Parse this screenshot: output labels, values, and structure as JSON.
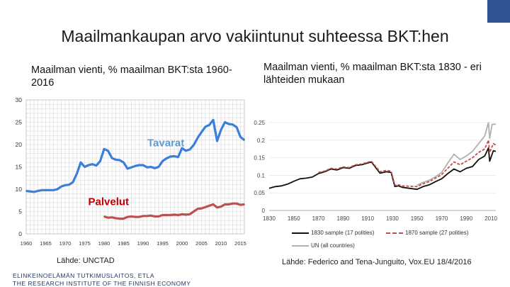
{
  "slide": {
    "title": "Maailmankaupan arvo vakiintunut suhteessa BKT:hen",
    "left_title": "Maailman vienti, % maailman BKT:sta 1960-2016",
    "right_title": "Maailman vienti, % maailman BKT:sta 1830 - eri lähteiden mukaan",
    "left_source": "Lähde: UNCTAD",
    "right_source": "Lähde: Federico and Tena-Junguito, Vox.EU 18/4/2016",
    "footer_line1": "ELINKEINOELÄMÄN TUTKIMUSLAITOS, ETLA",
    "footer_line2": "THE RESEARCH INSTITUTE OF THE FINNISH ECONOMY",
    "colors": {
      "brand": "#2f5597",
      "goods": "#3a7fd8",
      "services": "#c0504d"
    }
  },
  "chart_data": [
    {
      "type": "line",
      "x_ticks": [
        1960,
        1965,
        1970,
        1975,
        1980,
        1985,
        1990,
        1995,
        2000,
        2005,
        2010,
        2015
      ],
      "y_ticks": [
        0,
        5,
        10,
        15,
        20,
        25,
        30
      ],
      "ylim": [
        0,
        30
      ],
      "xlim": [
        1960,
        2016
      ],
      "grid": true,
      "annotations": [
        "Tavarat",
        "Palvelut"
      ],
      "series": [
        {
          "name": "Tavarat",
          "color": "#3a7fd8",
          "points": [
            [
              1960,
              9.6
            ],
            [
              1961,
              9.5
            ],
            [
              1962,
              9.4
            ],
            [
              1963,
              9.6
            ],
            [
              1964,
              9.8
            ],
            [
              1965,
              9.8
            ],
            [
              1966,
              9.8
            ],
            [
              1967,
              9.8
            ],
            [
              1968,
              10.0
            ],
            [
              1969,
              10.6
            ],
            [
              1970,
              10.9
            ],
            [
              1971,
              11.0
            ],
            [
              1972,
              11.6
            ],
            [
              1973,
              13.5
            ],
            [
              1974,
              16.0
            ],
            [
              1975,
              15.0
            ],
            [
              1976,
              15.4
            ],
            [
              1977,
              15.6
            ],
            [
              1978,
              15.3
            ],
            [
              1979,
              16.3
            ],
            [
              1980,
              19.0
            ],
            [
              1981,
              18.6
            ],
            [
              1982,
              17.0
            ],
            [
              1983,
              16.6
            ],
            [
              1984,
              16.5
            ],
            [
              1985,
              16.0
            ],
            [
              1986,
              14.6
            ],
            [
              1987,
              14.9
            ],
            [
              1988,
              15.2
            ],
            [
              1989,
              15.4
            ],
            [
              1990,
              15.4
            ],
            [
              1991,
              14.9
            ],
            [
              1992,
              15.0
            ],
            [
              1993,
              14.7
            ],
            [
              1994,
              15.0
            ],
            [
              1995,
              16.3
            ],
            [
              1996,
              16.9
            ],
            [
              1997,
              17.3
            ],
            [
              1998,
              17.4
            ],
            [
              1999,
              17.2
            ],
            [
              2000,
              19.2
            ],
            [
              2001,
              18.6
            ],
            [
              2002,
              18.9
            ],
            [
              2003,
              19.9
            ],
            [
              2004,
              21.5
            ],
            [
              2005,
              22.8
            ],
            [
              2006,
              24.0
            ],
            [
              2007,
              24.4
            ],
            [
              2008,
              25.5
            ],
            [
              2009,
              20.8
            ],
            [
              2010,
              23.3
            ],
            [
              2011,
              25.0
            ],
            [
              2012,
              24.6
            ],
            [
              2013,
              24.5
            ],
            [
              2014,
              23.9
            ],
            [
              2015,
              21.7
            ],
            [
              2016,
              21.0
            ]
          ]
        },
        {
          "name": "Palvelut",
          "color": "#c0504d",
          "points": [
            [
              1980,
              3.9
            ],
            [
              1981,
              3.6
            ],
            [
              1982,
              3.7
            ],
            [
              1983,
              3.5
            ],
            [
              1984,
              3.4
            ],
            [
              1985,
              3.4
            ],
            [
              1986,
              3.8
            ],
            [
              1987,
              3.9
            ],
            [
              1988,
              3.8
            ],
            [
              1989,
              3.8
            ],
            [
              1990,
              4.0
            ],
            [
              1991,
              4.0
            ],
            [
              1992,
              4.1
            ],
            [
              1993,
              3.9
            ],
            [
              1994,
              3.9
            ],
            [
              1995,
              4.2
            ],
            [
              1996,
              4.2
            ],
            [
              1997,
              4.2
            ],
            [
              1998,
              4.3
            ],
            [
              1999,
              4.2
            ],
            [
              2000,
              4.4
            ],
            [
              2001,
              4.3
            ],
            [
              2002,
              4.4
            ],
            [
              2003,
              5.0
            ],
            [
              2004,
              5.6
            ],
            [
              2005,
              5.7
            ],
            [
              2006,
              6.0
            ],
            [
              2007,
              6.3
            ],
            [
              2008,
              6.6
            ],
            [
              2009,
              5.9
            ],
            [
              2010,
              6.1
            ],
            [
              2011,
              6.6
            ],
            [
              2012,
              6.6
            ],
            [
              2013,
              6.8
            ],
            [
              2014,
              6.8
            ],
            [
              2015,
              6.5
            ],
            [
              2016,
              6.6
            ]
          ]
        }
      ]
    },
    {
      "type": "line",
      "x_ticks": [
        1830,
        1850,
        1870,
        1890,
        1910,
        1930,
        1950,
        1970,
        1990,
        2010
      ],
      "y_ticks": [
        0,
        0.05,
        0.1,
        0.15,
        0.2,
        0.25
      ],
      "y_tick_labels": [
        "0",
        "0.05",
        "0.1",
        "0.15",
        "0.2",
        "0.25"
      ],
      "ylim": [
        0,
        0.26
      ],
      "xlim": [
        1830,
        2014
      ],
      "grid": true,
      "legend": {
        "position": "bottom"
      },
      "series": [
        {
          "name": "1830 sample (17 polities)",
          "color": "#111111",
          "style": "solid",
          "points": [
            [
              1830,
              0.063
            ],
            [
              1835,
              0.068
            ],
            [
              1840,
              0.07
            ],
            [
              1845,
              0.075
            ],
            [
              1850,
              0.083
            ],
            [
              1855,
              0.09
            ],
            [
              1860,
              0.092
            ],
            [
              1865,
              0.095
            ],
            [
              1870,
              0.105
            ],
            [
              1875,
              0.11
            ],
            [
              1880,
              0.118
            ],
            [
              1885,
              0.115
            ],
            [
              1890,
              0.122
            ],
            [
              1895,
              0.12
            ],
            [
              1900,
              0.128
            ],
            [
              1905,
              0.13
            ],
            [
              1910,
              0.135
            ],
            [
              1913,
              0.138
            ],
            [
              1920,
              0.106
            ],
            [
              1925,
              0.11
            ],
            [
              1929,
              0.108
            ],
            [
              1932,
              0.068
            ],
            [
              1935,
              0.07
            ],
            [
              1938,
              0.066
            ],
            [
              1950,
              0.06
            ],
            [
              1955,
              0.068
            ],
            [
              1960,
              0.073
            ],
            [
              1965,
              0.082
            ],
            [
              1970,
              0.09
            ],
            [
              1975,
              0.105
            ],
            [
              1980,
              0.118
            ],
            [
              1985,
              0.11
            ],
            [
              1990,
              0.12
            ],
            [
              1995,
              0.125
            ],
            [
              2000,
              0.145
            ],
            [
              2005,
              0.155
            ],
            [
              2008,
              0.178
            ],
            [
              2009,
              0.14
            ],
            [
              2012,
              0.17
            ],
            [
              2014,
              0.168
            ]
          ]
        },
        {
          "name": "1870 sample (27 polities)",
          "color": "#c0504d",
          "style": "dashed",
          "points": [
            [
              1870,
              0.108
            ],
            [
              1875,
              0.112
            ],
            [
              1880,
              0.12
            ],
            [
              1885,
              0.118
            ],
            [
              1890,
              0.124
            ],
            [
              1895,
              0.122
            ],
            [
              1900,
              0.13
            ],
            [
              1905,
              0.132
            ],
            [
              1910,
              0.137
            ],
            [
              1913,
              0.14
            ],
            [
              1920,
              0.11
            ],
            [
              1925,
              0.114
            ],
            [
              1929,
              0.112
            ],
            [
              1932,
              0.072
            ],
            [
              1935,
              0.073
            ],
            [
              1938,
              0.07
            ],
            [
              1950,
              0.068
            ],
            [
              1955,
              0.076
            ],
            [
              1960,
              0.082
            ],
            [
              1965,
              0.092
            ],
            [
              1970,
              0.102
            ],
            [
              1975,
              0.12
            ],
            [
              1980,
              0.138
            ],
            [
              1985,
              0.13
            ],
            [
              1990,
              0.14
            ],
            [
              1995,
              0.15
            ],
            [
              2000,
              0.165
            ],
            [
              2005,
              0.175
            ],
            [
              2008,
              0.2
            ],
            [
              2009,
              0.165
            ],
            [
              2012,
              0.19
            ],
            [
              2014,
              0.186
            ]
          ]
        },
        {
          "name": "UN (all countries)",
          "color": "#b0b0b0",
          "style": "solid",
          "points": [
            [
              1950,
              0.072
            ],
            [
              1955,
              0.08
            ],
            [
              1960,
              0.086
            ],
            [
              1965,
              0.096
            ],
            [
              1970,
              0.108
            ],
            [
              1975,
              0.135
            ],
            [
              1980,
              0.16
            ],
            [
              1985,
              0.145
            ],
            [
              1990,
              0.155
            ],
            [
              1995,
              0.168
            ],
            [
              2000,
              0.19
            ],
            [
              2005,
              0.212
            ],
            [
              2008,
              0.25
            ],
            [
              2009,
              0.205
            ],
            [
              2011,
              0.245
            ],
            [
              2014,
              0.245
            ]
          ]
        }
      ]
    }
  ]
}
